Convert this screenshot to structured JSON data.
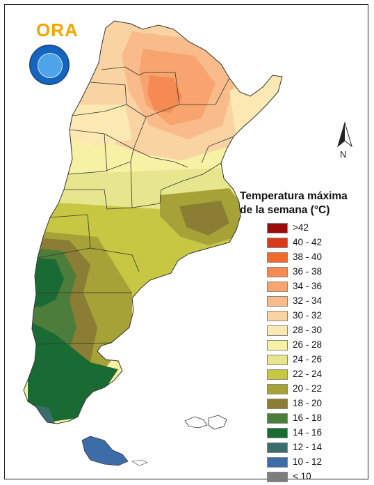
{
  "logo": {
    "text_main": "ORA",
    "accent_color": "#f6a600",
    "brand_color": "#2e7d32"
  },
  "north_arrow": {
    "label": "N"
  },
  "legend": {
    "title_line1": "Temperatura máxima",
    "title_line2": "de la semana (°C)",
    "items": [
      {
        "label": ">42",
        "color": "#9b0c0c"
      },
      {
        "label": "40 - 42",
        "color": "#d63a1b"
      },
      {
        "label": "38 - 40",
        "color": "#f26b2c"
      },
      {
        "label": "36 - 38",
        "color": "#f58a52"
      },
      {
        "label": "34 - 36",
        "color": "#f7a46f"
      },
      {
        "label": "32 - 34",
        "color": "#f9bb8a"
      },
      {
        "label": "30 - 32",
        "color": "#fad3a3"
      },
      {
        "label": "28 - 30",
        "color": "#fbe8b2"
      },
      {
        "label": "26 - 28",
        "color": "#f6f1a4"
      },
      {
        "label": "24 - 26",
        "color": "#e6e68e"
      },
      {
        "label": "22 - 24",
        "color": "#c7c743"
      },
      {
        "label": "20 - 22",
        "color": "#a6a238"
      },
      {
        "label": "18 - 20",
        "color": "#8c7d35"
      },
      {
        "label": "16 - 18",
        "color": "#4d7d3a"
      },
      {
        "label": "14 - 16",
        "color": "#1a6b33"
      },
      {
        "label": "12 - 14",
        "color": "#3a6e6e"
      },
      {
        "label": "10 - 12",
        "color": "#3d6da8"
      },
      {
        "label": "< 10",
        "color": "#7d7d7d"
      }
    ]
  }
}
